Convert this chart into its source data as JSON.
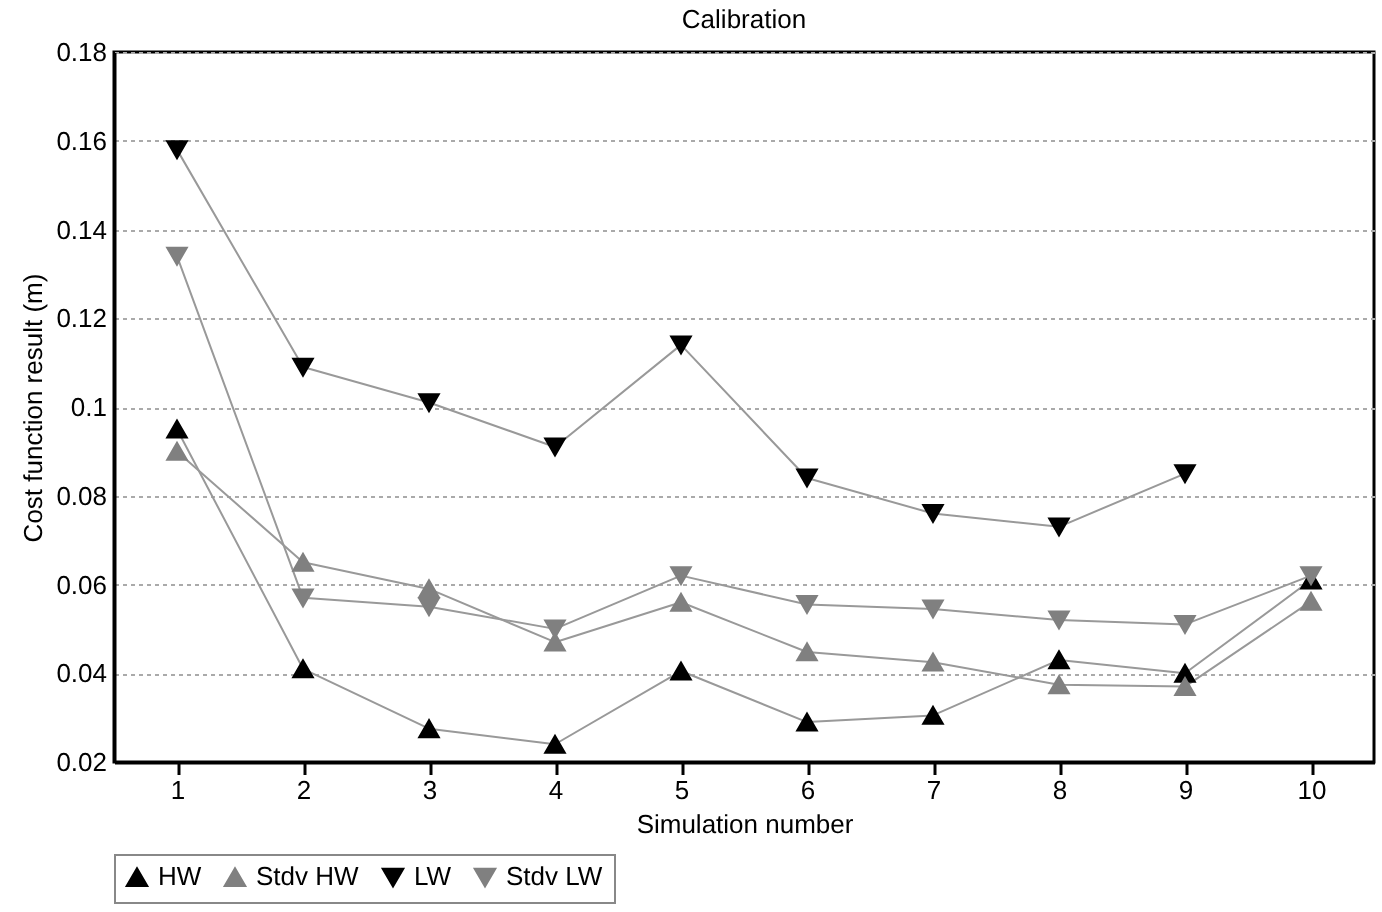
{
  "chart_data": {
    "type": "line",
    "title": "Calibration",
    "xlabel": "Simulation number",
    "ylabel": "Cost function result (m)",
    "x": [
      1,
      2,
      3,
      4,
      5,
      6,
      7,
      8,
      9,
      10
    ],
    "xlim": [
      0.5,
      10.5
    ],
    "xticks": [
      1,
      2,
      3,
      4,
      5,
      6,
      7,
      8,
      9,
      10
    ],
    "ylim": [
      0.02,
      0.18
    ],
    "yticks": [
      0.02,
      0.04,
      0.06,
      0.08,
      0.1,
      0.12,
      0.14,
      0.16,
      0.18
    ],
    "grid": "y",
    "legend": "bottom",
    "line_style": "solid",
    "series": [
      {
        "name": "HW",
        "color": "#000000",
        "marker": "triangle-up",
        "values": [
          0.095,
          0.041,
          0.0275,
          0.024,
          0.0405,
          0.029,
          0.0305,
          0.043,
          0.04,
          0.061
        ]
      },
      {
        "name": "Stdv HW",
        "color": "#808080",
        "marker": "triangle-up",
        "values": [
          0.09,
          0.065,
          0.059,
          0.047,
          0.056,
          0.0448,
          0.0425,
          0.0374,
          0.037,
          0.0562
        ]
      },
      {
        "name": "LW",
        "color": "#000000",
        "marker": "triangle-down",
        "values": [
          0.158,
          0.109,
          0.101,
          0.091,
          0.114,
          0.084,
          0.076,
          0.073,
          0.085,
          null
        ]
      },
      {
        "name": "Stdv LW",
        "color": "#808080",
        "marker": "triangle-down",
        "values": [
          0.134,
          0.057,
          0.055,
          0.05,
          0.062,
          0.0555,
          0.0545,
          0.052,
          0.051,
          0.062
        ]
      }
    ]
  }
}
